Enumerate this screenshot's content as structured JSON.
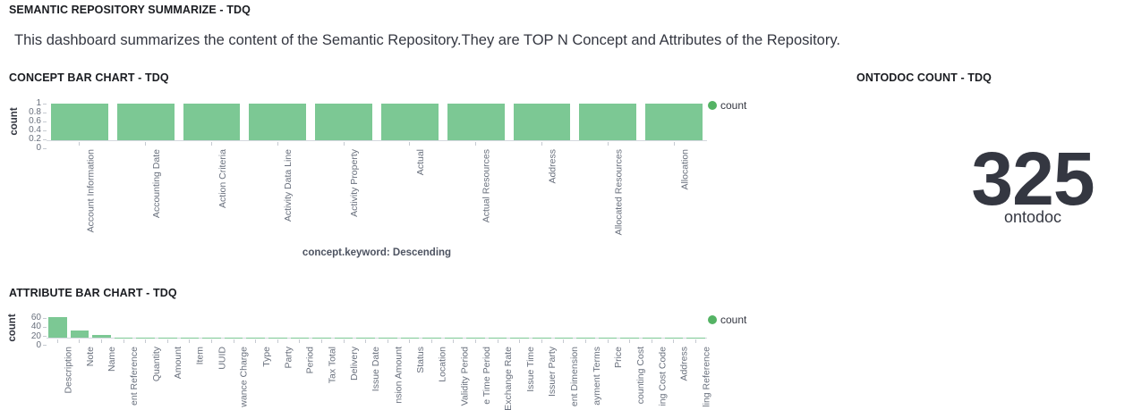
{
  "header": {
    "title": "SEMANTIC REPOSITORY SUMMARIZE - TDQ"
  },
  "description": {
    "text": "This dashboard summarizes the content of the Semantic Repository.They are TOP N Concept and Attributes of the Repository."
  },
  "panels": {
    "concept": {
      "title": "CONCEPT BAR CHART - TDQ"
    },
    "metric": {
      "title": "ONTODOC COUNT - TDQ",
      "value": "325",
      "label": "ontodoc"
    },
    "attribute": {
      "title": "ATTRIBUTE BAR CHART - TDQ"
    }
  },
  "colors": {
    "bar_green": "#7cc894",
    "legend_dot": "#54b364",
    "text_dark": "#343741",
    "axis_text": "#69707d"
  },
  "chart_data": [
    {
      "id": "concept",
      "type": "bar",
      "title": "CONCEPT BAR CHART - TDQ",
      "categories": [
        "Account Information",
        "Accounting Date",
        "Action Criteria",
        "Activity Data Line",
        "Activity Property",
        "Actual",
        "Actual Resources",
        "Address",
        "Allocated Resources",
        "Allocation"
      ],
      "values": [
        1,
        1,
        1,
        1,
        1,
        1,
        1,
        1,
        1,
        1
      ],
      "xlabel": "concept.keyword: Descending",
      "ylabel": "count",
      "ylim": [
        0,
        1
      ],
      "yticks": [
        "1",
        "0.8",
        "0.6",
        "0.4",
        "0.2",
        "0"
      ],
      "legend": [
        "count"
      ],
      "legend_position": "right",
      "grid": false
    },
    {
      "id": "attribute",
      "type": "bar",
      "title": "ATTRIBUTE BAR CHART - TDQ",
      "categories": [
        "Description",
        "Note",
        "Name",
        "ent Reference",
        "Quantity",
        "Amount",
        "Item",
        "UUID",
        "wance Charge",
        "Type",
        "Party",
        "Period",
        "Tax Total",
        "Delivery",
        "Issue Date",
        "nsion Amount",
        "Status",
        "Location",
        "Validity Period",
        "e Time Period",
        "Exchange Rate",
        "Issue Time",
        "Issuer Party",
        "ent Dimension",
        "ayment Terms",
        "Price",
        "counting Cost",
        "ing Cost Code",
        "Address",
        "ling Reference"
      ],
      "values": [
        62,
        21,
        8,
        1,
        1,
        1,
        1,
        1,
        1,
        1,
        1,
        1,
        1,
        1,
        1,
        1,
        1,
        1,
        1,
        1,
        1,
        1,
        1,
        1,
        1,
        1,
        1,
        1,
        1,
        1
      ],
      "xlabel": "",
      "ylabel": "count",
      "ylim": [
        0,
        65
      ],
      "yticks": [
        "60",
        "40",
        "20",
        "0"
      ],
      "legend": [
        "count"
      ],
      "legend_position": "right",
      "grid": false
    }
  ]
}
